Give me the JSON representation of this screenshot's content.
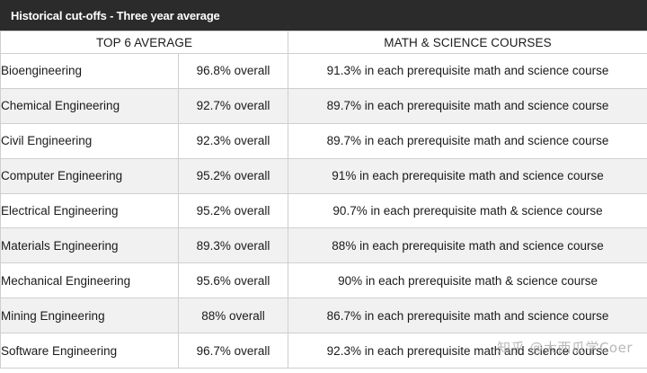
{
  "title": "Historical cut-offs - Three year average",
  "headers": {
    "average": "TOP 6 AVERAGE",
    "courses": "MATH & SCIENCE COURSES"
  },
  "rows": [
    {
      "program": "Bioengineering",
      "overall": "96.8% overall",
      "courses": "91.3% in each prerequisite math and science course"
    },
    {
      "program": "Chemical Engineering",
      "overall": "92.7% overall",
      "courses": "89.7% in each prerequisite math and science course"
    },
    {
      "program": "Civil Engineering",
      "overall": "92.3% overall",
      "courses": "89.7% in each prerequisite math and science course"
    },
    {
      "program": "Computer Engineering",
      "overall": "95.2% overall",
      "courses": "91% in each prerequisite math and science course"
    },
    {
      "program": "Electrical Engineering",
      "overall": "95.2% overall",
      "courses": "90.7% in each prerequisite math & science course"
    },
    {
      "program": "Materials Engineering",
      "overall": "89.3% overall",
      "courses": "88% in each prerequisite math and science course"
    },
    {
      "program": "Mechanical Engineering",
      "overall": "95.6% overall",
      "courses": "90% in each prerequisite math & science course"
    },
    {
      "program": "Mining Engineering",
      "overall": "88% overall",
      "courses": "86.7% in each prerequisite math and science course"
    },
    {
      "program": "Software Engineering",
      "overall": "96.7% overall",
      "courses": "92.3% in each prerequisite math and science course"
    }
  ],
  "watermark": "知乎 @大西瓜学Coer"
}
